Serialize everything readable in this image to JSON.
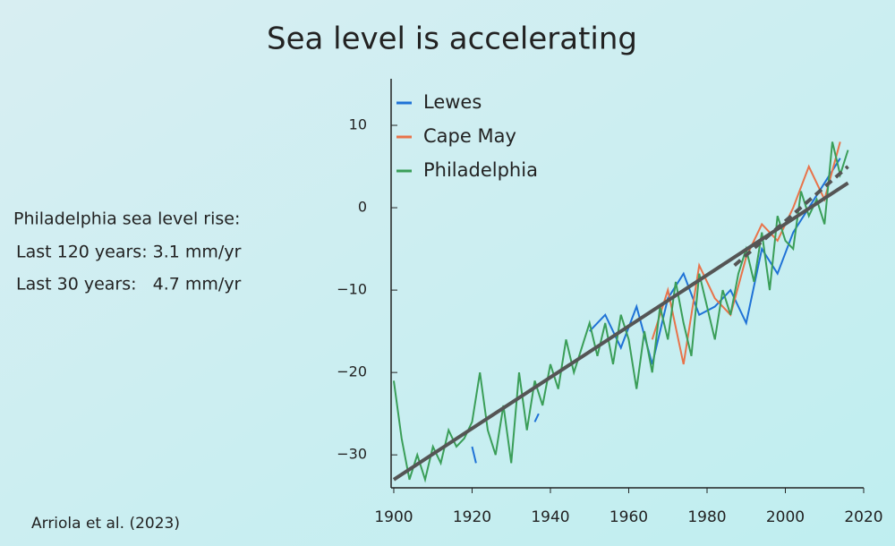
{
  "slide": {
    "title": "Sea level is accelerating",
    "notes": [
      "Philadelphia sea level rise:",
      "Last 120 years: 3.1 mm/yr",
      "Last 30 years:   4.7 mm/yr"
    ],
    "citation": "Arriola et al. (2023)"
  },
  "chart_data": {
    "type": "line",
    "xlim": [
      1899,
      2020
    ],
    "ylim": [
      -34,
      15
    ],
    "xticks": [
      1900,
      1920,
      1940,
      1960,
      1980,
      2000,
      2020
    ],
    "yticks": [
      10,
      0,
      {
        "value": -10,
        "label": "−10"
      },
      {
        "value": -20,
        "label": "−20"
      },
      {
        "value": -30,
        "label": "−30"
      }
    ],
    "legend": "upper left",
    "series": [
      {
        "name": "Lewes",
        "color": "#1f72d6",
        "x": [
          1920,
          1921,
          1928,
          1936,
          1937,
          1944,
          1950,
          1954,
          1958,
          1962,
          1966,
          1970,
          1974,
          1978,
          1982,
          1986,
          1990,
          1994,
          1998,
          2002,
          2006,
          2010,
          2014
        ],
        "values": [
          -29,
          -31,
          null,
          -26,
          -25,
          null,
          -15,
          -13,
          -17,
          -12,
          -19,
          -11,
          -8,
          -13,
          -12,
          -10,
          -14,
          -5,
          -8,
          -3,
          0,
          3,
          6
        ]
      },
      {
        "name": "Cape May",
        "color": "#e8734a",
        "x": [
          1966,
          1970,
          1974,
          1978,
          1982,
          1986,
          1990,
          1994,
          1998,
          2002,
          2006,
          2010,
          2014
        ],
        "values": [
          -16,
          -10,
          -19,
          -7,
          -11,
          -13,
          -6,
          -2,
          -4,
          0,
          5,
          1,
          8
        ]
      },
      {
        "name": "Philadelphia",
        "color": "#3a9e58",
        "x": [
          1900,
          1902,
          1904,
          1906,
          1908,
          1910,
          1912,
          1914,
          1916,
          1918,
          1920,
          1922,
          1924,
          1926,
          1928,
          1930,
          1932,
          1934,
          1936,
          1938,
          1940,
          1942,
          1944,
          1946,
          1948,
          1950,
          1952,
          1954,
          1956,
          1958,
          1960,
          1962,
          1964,
          1966,
          1968,
          1970,
          1972,
          1974,
          1976,
          1978,
          1980,
          1982,
          1984,
          1986,
          1988,
          1990,
          1992,
          1994,
          1996,
          1998,
          2000,
          2002,
          2004,
          2006,
          2008,
          2010,
          2012,
          2014,
          2016
        ],
        "values": [
          -21,
          -28,
          -33,
          -30,
          -33,
          -29,
          -31,
          -27,
          -29,
          -28,
          -26,
          -20,
          -27,
          -30,
          -24,
          -31,
          -20,
          -27,
          -21,
          -24,
          -19,
          -22,
          -16,
          -20,
          -17,
          -14,
          -18,
          -14,
          -19,
          -13,
          -16,
          -22,
          -15,
          -20,
          -12,
          -16,
          -9,
          -14,
          -18,
          -8,
          -12,
          -16,
          -10,
          -13,
          -8,
          -5,
          -9,
          -3,
          -10,
          -1,
          -4,
          -5,
          2,
          -1,
          1,
          -2,
          8,
          4,
          7
        ]
      }
    ],
    "trends": [
      {
        "color": "#555555",
        "x": [
          1900,
          2016
        ],
        "values": [
          -33,
          3
        ]
      },
      {
        "color": "#555555",
        "dashed": true,
        "x": [
          1987,
          2016
        ],
        "values": [
          -7,
          5
        ]
      }
    ]
  }
}
